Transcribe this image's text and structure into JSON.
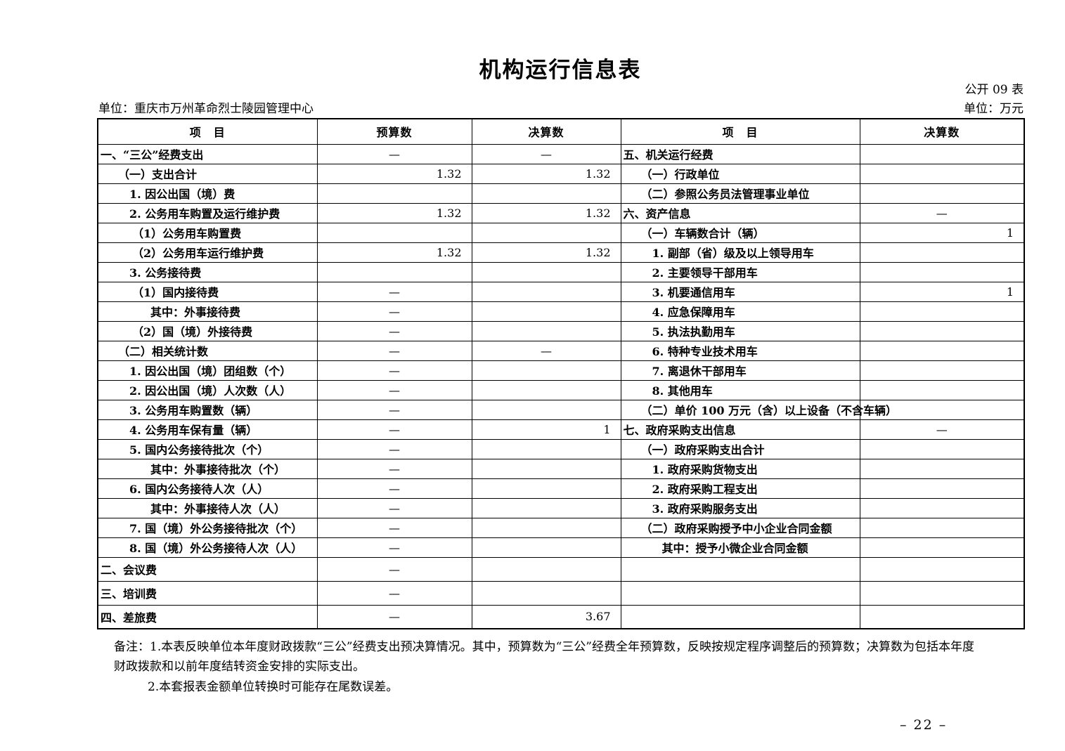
{
  "page": {
    "title": "机构运行信息表",
    "form_code": "公开 09 表",
    "unit_label": "单位：重庆市万州革命烈士陵园管理中心",
    "currency_unit": "单位：万元",
    "page_number": "– 22 –"
  },
  "table": {
    "headers": {
      "item_left": "项　目",
      "budget": "预算数",
      "final_left": "决算数",
      "item_right": "项　目",
      "final_right": "决算数"
    },
    "left_rows": [
      {
        "label": "一、“三公”经费支出",
        "indent": 0,
        "budget": "—",
        "final": "—",
        "tall": false
      },
      {
        "label": "（一）支出合计",
        "indent": 1,
        "budget": "1.32",
        "final": "1.32",
        "tall": false
      },
      {
        "label": "1. 因公出国（境）费",
        "indent": 2,
        "budget": "",
        "final": "",
        "tall": false
      },
      {
        "label": "2. 公务用车购置及运行维护费",
        "indent": 2,
        "budget": "1.32",
        "final": "1.32",
        "tall": false
      },
      {
        "label": "（1）公务用车购置费",
        "indent": 3,
        "budget": "",
        "final": "",
        "tall": false
      },
      {
        "label": "（2）公务用车运行维护费",
        "indent": 3,
        "budget": "1.32",
        "final": "1.32",
        "tall": false
      },
      {
        "label": "3. 公务接待费",
        "indent": 2,
        "budget": "",
        "final": "",
        "tall": false
      },
      {
        "label": "（1）国内接待费",
        "indent": 3,
        "budget": "—",
        "final": "",
        "tall": false
      },
      {
        "label": "其中：外事接待费",
        "indent": 4,
        "budget": "—",
        "final": "",
        "tall": false
      },
      {
        "label": "（2）国（境）外接待费",
        "indent": 3,
        "budget": "—",
        "final": "",
        "tall": false
      },
      {
        "label": "（二）相关统计数",
        "indent": 1,
        "budget": "—",
        "final": "—",
        "tall": false
      },
      {
        "label": "1. 因公出国（境）团组数（个）",
        "indent": 2,
        "budget": "—",
        "final": "",
        "tall": false
      },
      {
        "label": "2. 因公出国（境）人次数（人）",
        "indent": 2,
        "budget": "—",
        "final": "",
        "tall": false
      },
      {
        "label": "3. 公务用车购置数（辆）",
        "indent": 2,
        "budget": "—",
        "final": "",
        "tall": false
      },
      {
        "label": "4. 公务用车保有量（辆）",
        "indent": 2,
        "budget": "—",
        "final": "1",
        "tall": false
      },
      {
        "label": "5. 国内公务接待批次（个）",
        "indent": 2,
        "budget": "—",
        "final": "",
        "tall": false
      },
      {
        "label": "其中：外事接待批次（个）",
        "indent": 4,
        "budget": "—",
        "final": "",
        "tall": false
      },
      {
        "label": "6. 国内公务接待人次（人）",
        "indent": 2,
        "budget": "—",
        "final": "",
        "tall": false
      },
      {
        "label": "其中：外事接待人次（人）",
        "indent": 4,
        "budget": "—",
        "final": "",
        "tall": false
      },
      {
        "label": "7. 国（境）外公务接待批次（个）",
        "indent": 2,
        "budget": "—",
        "final": "",
        "tall": false
      },
      {
        "label": "8. 国（境）外公务接待人次（人）",
        "indent": 2,
        "budget": "—",
        "final": "",
        "tall": false
      },
      {
        "label": "二、会议费",
        "indent": 0,
        "budget": "—",
        "final": "",
        "tall": true
      },
      {
        "label": "三、培训费",
        "indent": 0,
        "budget": "—",
        "final": "",
        "tall": true
      },
      {
        "label": "四、差旅费",
        "indent": 0,
        "budget": "—",
        "final": "3.67",
        "tall": true
      }
    ],
    "right_rows": [
      {
        "label": "五、机关运行经费",
        "indent": 0,
        "final": ""
      },
      {
        "label": "（一）行政单位",
        "indent": 1,
        "final": ""
      },
      {
        "label": "（二）参照公务员法管理事业单位",
        "indent": 1,
        "final": ""
      },
      {
        "label": "六、资产信息",
        "indent": 0,
        "final": "—"
      },
      {
        "label": "（一）车辆数合计（辆）",
        "indent": 1,
        "final": "1"
      },
      {
        "label": "1. 副部（省）级及以上领导用车",
        "indent": 2,
        "final": ""
      },
      {
        "label": "2. 主要领导干部用车",
        "indent": 2,
        "final": ""
      },
      {
        "label": "3. 机要通信用车",
        "indent": 2,
        "final": "1"
      },
      {
        "label": "4. 应急保障用车",
        "indent": 2,
        "final": ""
      },
      {
        "label": "5. 执法执勤用车",
        "indent": 2,
        "final": ""
      },
      {
        "label": "6. 特种专业技术用车",
        "indent": 2,
        "final": ""
      },
      {
        "label": "7. 离退休干部用车",
        "indent": 2,
        "final": ""
      },
      {
        "label": "8. 其他用车",
        "indent": 2,
        "final": ""
      },
      {
        "label": "（二）单价 100 万元（含）以上设备（不含车辆）",
        "indent": 1,
        "final": ""
      },
      {
        "label": "七、政府采购支出信息",
        "indent": 0,
        "final": "—"
      },
      {
        "label": "（一）政府采购支出合计",
        "indent": 1,
        "final": ""
      },
      {
        "label": "1. 政府采购货物支出",
        "indent": 2,
        "final": ""
      },
      {
        "label": "2. 政府采购工程支出",
        "indent": 2,
        "final": ""
      },
      {
        "label": "3. 政府采购服务支出",
        "indent": 2,
        "final": ""
      },
      {
        "label": "（二）政府采购授予中小企业合同金额",
        "indent": 1,
        "final": ""
      },
      {
        "label": "其中：授予小微企业合同金额",
        "indent": 5,
        "final": ""
      },
      {
        "label": "",
        "indent": 0,
        "final": ""
      },
      {
        "label": "",
        "indent": 0,
        "final": ""
      },
      {
        "label": "",
        "indent": 0,
        "final": ""
      }
    ]
  },
  "notes": {
    "line1": "备注：1.本表反映单位本年度财政拨款“三公”经费支出预决算情况。其中，预算数为“三公”经费全年预算数，反映按规定程序调整后的预算数；决算数为包括本年度",
    "line2": "财政拨款和以前年度结转资金安排的实际支出。",
    "line3": "2.本套报表金额单位转换时可能存在尾数误差。"
  }
}
